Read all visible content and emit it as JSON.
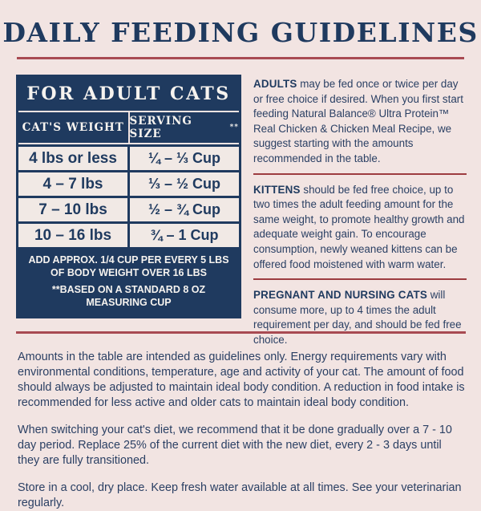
{
  "colors": {
    "bg": "#f2e4e2",
    "navy": "#1f3a5f",
    "text": "#2b4064",
    "red": "#a84a52",
    "cell": "#f1e9e5"
  },
  "title": "DAILY FEEDING GUIDELINES",
  "table": {
    "header": "FOR ADULT CATS",
    "col_weight": "CAT'S WEIGHT",
    "col_serving": "SERVING SIZE",
    "serving_note_marker": "**",
    "rows": [
      {
        "weight": "4 lbs or less",
        "serving": "¼ – ⅓ Cup"
      },
      {
        "weight": "4 – 7 lbs",
        "serving": "⅓ – ½ Cup"
      },
      {
        "weight": "7 – 10 lbs",
        "serving": "½ – ¾ Cup"
      },
      {
        "weight": "10 – 16 lbs",
        "serving": "¾ – 1 Cup"
      }
    ],
    "footnote_line1": "ADD APPROX. 1/4 CUP PER EVERY 5 LBS OF BODY WEIGHT OVER 16 LBS",
    "footnote_line2": "**BASED ON A STANDARD 8 OZ MEASURING CUP"
  },
  "paragraphs": {
    "adults": {
      "lead": "ADULTS",
      "text": " may be fed once or twice per day or free choice if desired. When you first start feeding Natural Balance® Ultra Protein™ Real Chicken & Chicken Meal Recipe, we suggest starting with the amounts recommended in the table."
    },
    "kittens": {
      "lead": "KITTENS",
      "text": " should be fed free choice, up to two times the adult feeding amount for the same weight, to promote healthy growth and adequate weight gain. To encourage consumption, newly weaned kittens can be offered food moistened with warm water."
    },
    "pregnant": {
      "lead": "PREGNANT AND NURSING CATS",
      "text": " will consume more, up to 4 times the adult requirement per day, and should be fed free choice."
    }
  },
  "bottom": {
    "guidelines_note": "Amounts in the table are intended as guidelines only. Energy requirements vary with environmental conditions, temperature, age and activity of your cat. The amount of food should always be adjusted to maintain ideal body condition. A reduction in food intake is recommended for less active and older cats to maintain ideal body condition.",
    "transition_note": "When switching your cat's diet, we recommend that it be done gradually over a 7 - 10 day period. Replace 25% of the current diet with the new diet, every 2 - 3 days until they are fully transitioned.",
    "storage_note": "Store in a cool, dry place. Keep fresh water available at all times.  See your veterinarian regularly."
  }
}
